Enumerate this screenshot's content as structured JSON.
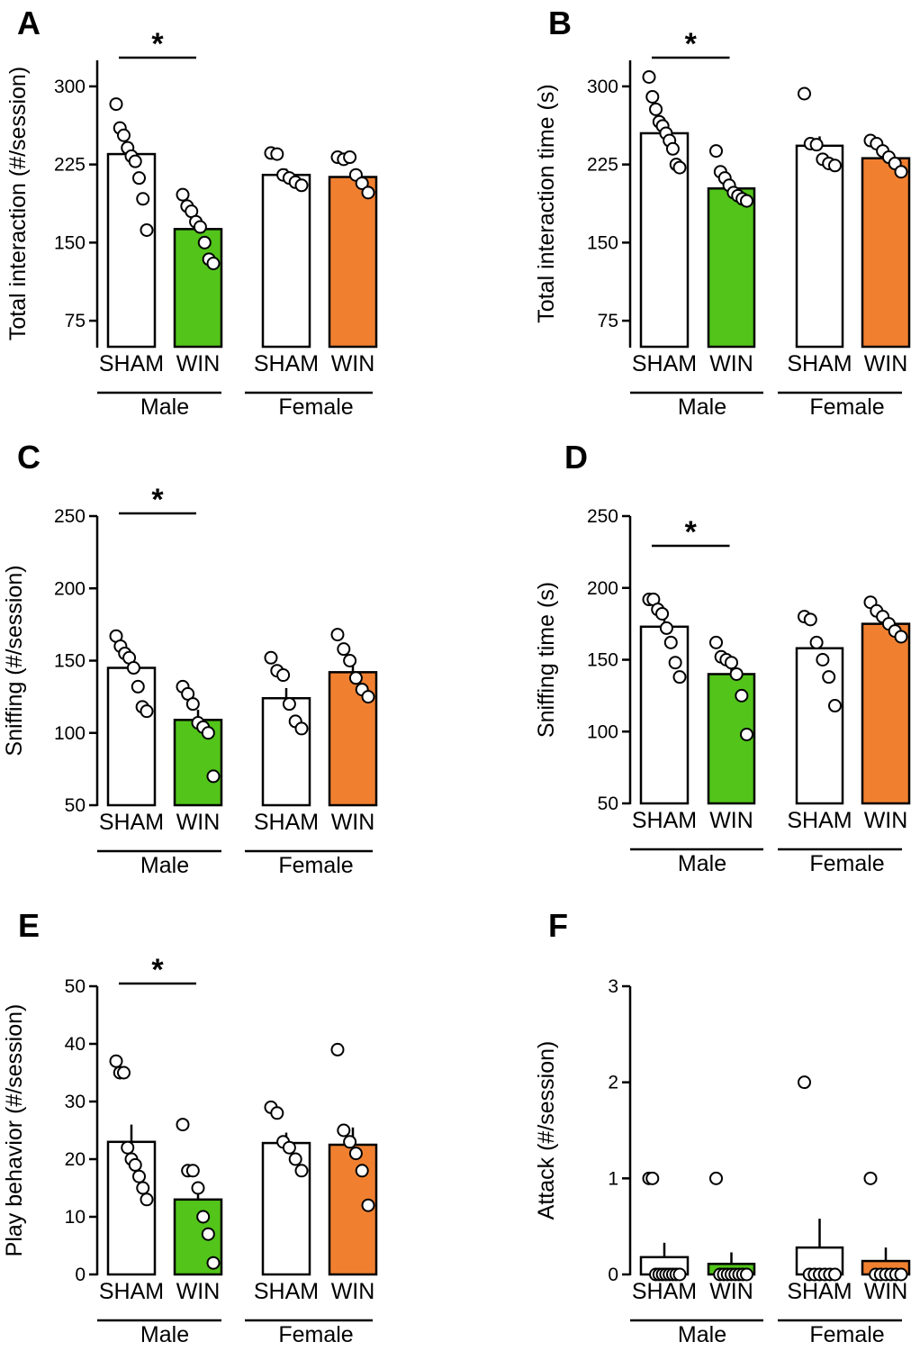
{
  "chart_data": [
    {
      "panel": "A",
      "type": "bar",
      "ylabel": "Total interaction (#/session)",
      "ylim": [
        50,
        325
      ],
      "yticks": [
        75,
        150,
        225,
        300
      ],
      "categories": [
        "SHAM",
        "WIN",
        "SHAM",
        "WIN"
      ],
      "groups": [
        "Male",
        "Female"
      ],
      "series": [
        {
          "name": "Male SHAM",
          "mean": 235,
          "sem": 11,
          "color": "#ffffff",
          "points": [
            283,
            260,
            253,
            241,
            233,
            228,
            212,
            192,
            162
          ]
        },
        {
          "name": "Male WIN",
          "mean": 163,
          "sem": 10,
          "color": "#52c41a",
          "points": [
            196,
            185,
            180,
            170,
            165,
            150,
            134,
            130
          ]
        },
        {
          "name": "Female SHAM",
          "mean": 215,
          "sem": 6,
          "color": "#ffffff",
          "points": [
            236,
            235,
            215,
            212,
            208,
            205
          ]
        },
        {
          "name": "Female WIN",
          "mean": 213,
          "sem": 7,
          "color": "#f08030",
          "points": [
            232,
            230,
            232,
            215,
            207,
            198
          ]
        }
      ],
      "significance": {
        "label": "*",
        "between": [
          "Male SHAM",
          "Male WIN"
        ]
      }
    },
    {
      "panel": "B",
      "type": "bar",
      "ylabel": "Total interaction time (s)",
      "ylim": [
        50,
        325
      ],
      "yticks": [
        75,
        150,
        225,
        300
      ],
      "categories": [
        "SHAM",
        "WIN",
        "SHAM",
        "WIN"
      ],
      "groups": [
        "Male",
        "Female"
      ],
      "series": [
        {
          "name": "Male SHAM",
          "mean": 255,
          "sem": 10,
          "color": "#ffffff",
          "points": [
            309,
            290,
            278,
            266,
            262,
            255,
            248,
            240,
            225,
            222
          ]
        },
        {
          "name": "Male WIN",
          "mean": 202,
          "sem": 6,
          "color": "#52c41a",
          "points": [
            238,
            218,
            212,
            205,
            198,
            195,
            192,
            190
          ]
        },
        {
          "name": "Female SHAM",
          "mean": 243,
          "sem": 9,
          "color": "#ffffff",
          "points": [
            293,
            245,
            244,
            230,
            226,
            224
          ]
        },
        {
          "name": "Female WIN",
          "mean": 231,
          "sem": 7,
          "color": "#f08030",
          "points": [
            248,
            245,
            238,
            232,
            226,
            218
          ]
        }
      ],
      "significance": {
        "label": "*",
        "between": [
          "Male SHAM",
          "Male WIN"
        ]
      }
    },
    {
      "panel": "C",
      "type": "bar",
      "ylabel": "Sniffing (#/session)",
      "ylim": [
        50,
        250
      ],
      "yticks": [
        50,
        100,
        150,
        200,
        250
      ],
      "categories": [
        "SHAM",
        "WIN",
        "SHAM",
        "WIN"
      ],
      "groups": [
        "Male",
        "Female"
      ],
      "series": [
        {
          "name": "Male SHAM",
          "mean": 145,
          "sem": 6,
          "color": "#ffffff",
          "points": [
            167,
            160,
            155,
            152,
            145,
            132,
            118,
            115
          ]
        },
        {
          "name": "Male WIN",
          "mean": 109,
          "sem": 7,
          "color": "#52c41a",
          "points": [
            132,
            127,
            120,
            107,
            104,
            100,
            70
          ]
        },
        {
          "name": "Female SHAM",
          "mean": 124,
          "sem": 7,
          "color": "#ffffff",
          "points": [
            152,
            143,
            140,
            120,
            108,
            103
          ]
        },
        {
          "name": "Female WIN",
          "mean": 142,
          "sem": 7,
          "color": "#f08030",
          "points": [
            168,
            158,
            150,
            138,
            130,
            125
          ]
        }
      ],
      "significance": {
        "label": "*",
        "between": [
          "Male SHAM",
          "Male WIN"
        ]
      }
    },
    {
      "panel": "D",
      "type": "bar",
      "ylabel": "Sniffing time (s)",
      "ylim": [
        50,
        250
      ],
      "yticks": [
        50,
        100,
        150,
        200,
        250
      ],
      "categories": [
        "SHAM",
        "WIN",
        "SHAM",
        "WIN"
      ],
      "groups": [
        "Male",
        "Female"
      ],
      "series": [
        {
          "name": "Male SHAM",
          "mean": 173,
          "sem": 6,
          "color": "#ffffff",
          "points": [
            192,
            192,
            185,
            182,
            172,
            162,
            148,
            138
          ]
        },
        {
          "name": "Male WIN",
          "mean": 140,
          "sem": 8,
          "color": "#52c41a",
          "points": [
            162,
            152,
            150,
            148,
            140,
            125,
            98
          ]
        },
        {
          "name": "Female SHAM",
          "mean": 158,
          "sem": 7,
          "color": "#ffffff",
          "points": [
            180,
            178,
            162,
            150,
            138,
            118
          ]
        },
        {
          "name": "Female WIN",
          "mean": 175,
          "sem": 4,
          "color": "#f08030",
          "points": [
            190,
            184,
            180,
            175,
            170,
            166
          ]
        }
      ],
      "significance": {
        "label": "*",
        "between": [
          "Male SHAM",
          "Male WIN"
        ]
      }
    },
    {
      "panel": "E",
      "type": "bar",
      "ylabel": "Play behavior (#/session)",
      "ylim": [
        0,
        50
      ],
      "yticks": [
        0,
        10,
        20,
        30,
        40,
        50
      ],
      "categories": [
        "SHAM",
        "WIN",
        "SHAM",
        "WIN"
      ],
      "groups": [
        "Male",
        "Female"
      ],
      "series": [
        {
          "name": "Male SHAM",
          "mean": 23,
          "sem": 3,
          "color": "#ffffff",
          "points": [
            37,
            35,
            35,
            22,
            20,
            19,
            17,
            15,
            13
          ]
        },
        {
          "name": "Male WIN",
          "mean": 13,
          "sem": 3,
          "color": "#52c41a",
          "points": [
            26,
            18,
            18,
            15,
            10,
            7,
            2
          ]
        },
        {
          "name": "Female SHAM",
          "mean": 22.8,
          "sem": 1.8,
          "color": "#ffffff",
          "points": [
            29,
            28,
            23,
            22,
            20,
            18
          ]
        },
        {
          "name": "Female WIN",
          "mean": 22.5,
          "sem": 3,
          "color": "#f08030",
          "points": [
            39,
            25,
            23,
            21,
            18,
            12
          ]
        }
      ],
      "significance": {
        "label": "*",
        "between": [
          "Male SHAM",
          "Male WIN"
        ]
      }
    },
    {
      "panel": "F",
      "type": "bar",
      "ylabel": "Attack (#/session)",
      "ylim": [
        0,
        3
      ],
      "yticks": [
        0,
        1,
        2,
        3
      ],
      "categories": [
        "SHAM",
        "WIN",
        "SHAM",
        "WIN"
      ],
      "groups": [
        "Male",
        "Female"
      ],
      "series": [
        {
          "name": "Male SHAM",
          "mean": 0.18,
          "sem": 0.15,
          "color": "#ffffff",
          "points": [
            1,
            1,
            0,
            0,
            0,
            0,
            0,
            0,
            0,
            0
          ]
        },
        {
          "name": "Male WIN",
          "mean": 0.11,
          "sem": 0.12,
          "color": "#52c41a",
          "points": [
            1,
            0,
            0,
            0,
            0,
            0,
            0,
            0,
            0
          ]
        },
        {
          "name": "Female SHAM",
          "mean": 0.28,
          "sem": 0.3,
          "color": "#ffffff",
          "points": [
            2,
            0,
            0,
            0,
            0,
            0,
            0
          ]
        },
        {
          "name": "Female WIN",
          "mean": 0.14,
          "sem": 0.14,
          "color": "#f08030",
          "points": [
            1,
            0,
            0,
            0,
            0,
            0,
            0
          ]
        }
      ],
      "significance": null
    }
  ]
}
